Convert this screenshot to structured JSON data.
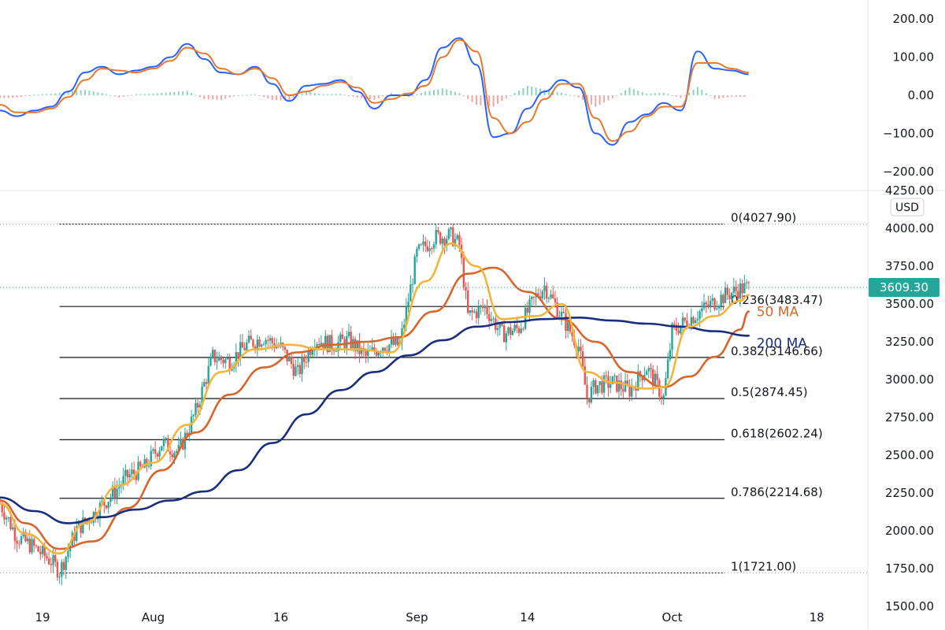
{
  "chart_data": [
    {
      "type": "line",
      "panel": "oscillator",
      "ylim": [
        -250,
        250
      ],
      "yticks": [
        "200.00",
        "100.00",
        "0.00",
        "−100.00",
        "−200.00"
      ],
      "ytick_values": [
        200,
        100,
        0,
        -100,
        -200
      ],
      "series": [
        {
          "color": "#2962ff",
          "x": [
            "2021-07-14",
            "2021-07-16",
            "2021-07-18",
            "2021-07-20",
            "2021-07-22",
            "2021-07-24",
            "2021-07-26",
            "2021-07-28",
            "2021-07-30",
            "2021-08-01",
            "2021-08-03",
            "2021-08-05",
            "2021-08-07",
            "2021-08-09",
            "2021-08-11",
            "2021-08-13",
            "2021-08-15",
            "2021-08-17",
            "2021-08-19",
            "2021-08-21",
            "2021-08-23",
            "2021-08-25",
            "2021-08-27",
            "2021-08-29",
            "2021-08-31",
            "2021-09-02",
            "2021-09-04",
            "2021-09-06",
            "2021-09-08",
            "2021-09-10",
            "2021-09-12",
            "2021-09-14",
            "2021-09-16",
            "2021-09-18",
            "2021-09-20",
            "2021-09-22",
            "2021-09-24",
            "2021-09-26",
            "2021-09-28",
            "2021-09-30",
            "2021-10-02",
            "2021-10-04",
            "2021-10-06",
            "2021-10-08",
            "2021-10-10"
          ],
          "y": [
            -40,
            -55,
            -40,
            -30,
            10,
            60,
            75,
            55,
            65,
            75,
            100,
            135,
            95,
            60,
            55,
            75,
            30,
            -15,
            25,
            30,
            40,
            10,
            -35,
            0,
            0,
            40,
            125,
            150,
            80,
            -110,
            -100,
            -35,
            10,
            40,
            20,
            -100,
            -130,
            -70,
            -50,
            -20,
            -40,
            115,
            70,
            65,
            55
          ]
        },
        {
          "color": "#e8782b",
          "x": [
            "2021-07-14",
            "2021-07-16",
            "2021-07-18",
            "2021-07-20",
            "2021-07-22",
            "2021-07-24",
            "2021-07-26",
            "2021-07-28",
            "2021-07-30",
            "2021-08-01",
            "2021-08-03",
            "2021-08-05",
            "2021-08-07",
            "2021-08-09",
            "2021-08-11",
            "2021-08-13",
            "2021-08-15",
            "2021-08-17",
            "2021-08-19",
            "2021-08-21",
            "2021-08-23",
            "2021-08-25",
            "2021-08-27",
            "2021-08-29",
            "2021-08-31",
            "2021-09-02",
            "2021-09-04",
            "2021-09-06",
            "2021-09-08",
            "2021-09-10",
            "2021-09-12",
            "2021-09-14",
            "2021-09-16",
            "2021-09-18",
            "2021-09-20",
            "2021-09-22",
            "2021-09-24",
            "2021-09-26",
            "2021-09-28",
            "2021-09-30",
            "2021-10-02",
            "2021-10-04",
            "2021-10-06",
            "2021-10-08",
            "2021-10-10"
          ],
          "y": [
            -25,
            -45,
            -45,
            -35,
            -5,
            40,
            70,
            65,
            60,
            70,
            90,
            125,
            110,
            70,
            55,
            70,
            45,
            0,
            10,
            25,
            35,
            20,
            -20,
            -10,
            5,
            25,
            100,
            145,
            115,
            -60,
            -100,
            -70,
            -10,
            30,
            30,
            -60,
            -120,
            -95,
            -55,
            -30,
            -30,
            85,
            85,
            70,
            60
          ]
        }
      ],
      "histogram": {
        "x": [
          "2021-07-14",
          "2021-07-16",
          "2021-07-18",
          "2021-07-20",
          "2021-07-22",
          "2021-07-24",
          "2021-07-26",
          "2021-07-28",
          "2021-07-30",
          "2021-08-01",
          "2021-08-03",
          "2021-08-05",
          "2021-08-07",
          "2021-08-09",
          "2021-08-11",
          "2021-08-13",
          "2021-08-15",
          "2021-08-17",
          "2021-08-19",
          "2021-08-21",
          "2021-08-23",
          "2021-08-25",
          "2021-08-27",
          "2021-08-29",
          "2021-08-31",
          "2021-09-02",
          "2021-09-04",
          "2021-09-06",
          "2021-09-08",
          "2021-09-10",
          "2021-09-12",
          "2021-09-14",
          "2021-09-16",
          "2021-09-18",
          "2021-09-20",
          "2021-09-22",
          "2021-09-24",
          "2021-09-26",
          "2021-09-28",
          "2021-09-30",
          "2021-10-02",
          "2021-10-04",
          "2021-10-06",
          "2021-10-08",
          "2021-10-10"
        ],
        "y": [
          -8,
          -6,
          2,
          4,
          10,
          14,
          6,
          -6,
          3,
          4,
          8,
          12,
          -10,
          -12,
          0,
          3,
          -12,
          -14,
          10,
          3,
          4,
          -6,
          -12,
          6,
          -4,
          10,
          18,
          6,
          -25,
          -30,
          0,
          25,
          15,
          7,
          -6,
          -30,
          -8,
          20,
          4,
          7,
          -7,
          22,
          -10,
          -4,
          -4
        ],
        "positive_color": "#8fd3c1",
        "negative_color": "#f2a5a5"
      }
    },
    {
      "type": "candlestick",
      "panel": "price",
      "currency": "USD",
      "ylim": [
        1500,
        4250
      ],
      "yticks": [
        "4250.00",
        "4000.00",
        "3750.00",
        "3500.00",
        "3250.00",
        "3000.00",
        "2750.00",
        "2500.00",
        "2250.00",
        "2000.00",
        "1750.00",
        "1500.00"
      ],
      "ytick_values": [
        4250,
        4000,
        3750,
        3500,
        3250,
        3000,
        2750,
        2500,
        2250,
        2000,
        1750,
        1500
      ],
      "xticks": [
        "19",
        "Aug",
        "16",
        "Sep",
        "14",
        "Oct",
        "18"
      ],
      "xtick_dates": [
        "2021-07-19",
        "2021-08-01",
        "2021-08-16",
        "2021-09-01",
        "2021-09-14",
        "2021-10-01",
        "2021-10-18"
      ],
      "xlim": [
        "2021-07-14",
        "2021-10-24"
      ],
      "last_price": "3609.30",
      "last_price_value": 3609.3,
      "up_color": "#26a69a",
      "down_color": "#ef5350",
      "price_path": [
        [
          "2021-07-14",
          2180
        ],
        [
          "2021-07-16",
          1960
        ],
        [
          "2021-07-18",
          1890
        ],
        [
          "2021-07-20",
          1800
        ],
        [
          "2021-07-21",
          1730
        ],
        [
          "2021-07-23",
          2010
        ],
        [
          "2021-07-25",
          2110
        ],
        [
          "2021-07-27",
          2230
        ],
        [
          "2021-07-29",
          2360
        ],
        [
          "2021-07-31",
          2420
        ],
        [
          "2021-08-02",
          2580
        ],
        [
          "2021-08-04",
          2520
        ],
        [
          "2021-08-06",
          2790
        ],
        [
          "2021-08-08",
          3150
        ],
        [
          "2021-08-10",
          3120
        ],
        [
          "2021-08-12",
          3230
        ],
        [
          "2021-08-14",
          3280
        ],
        [
          "2021-08-16",
          3210
        ],
        [
          "2021-08-18",
          3040
        ],
        [
          "2021-08-20",
          3270
        ],
        [
          "2021-08-22",
          3230
        ],
        [
          "2021-08-24",
          3260
        ],
        [
          "2021-08-26",
          3150
        ],
        [
          "2021-08-28",
          3230
        ],
        [
          "2021-08-30",
          3230
        ],
        [
          "2021-09-01",
          3830
        ],
        [
          "2021-09-03",
          3940
        ],
        [
          "2021-09-05",
          3950
        ],
        [
          "2021-09-06",
          3890
        ],
        [
          "2021-09-07",
          3420
        ],
        [
          "2021-09-09",
          3480
        ],
        [
          "2021-09-11",
          3300
        ],
        [
          "2021-09-13",
          3340
        ],
        [
          "2021-09-15",
          3550
        ],
        [
          "2021-09-16",
          3620
        ],
        [
          "2021-09-18",
          3420
        ],
        [
          "2021-09-20",
          3220
        ],
        [
          "2021-09-21",
          2880
        ],
        [
          "2021-09-22",
          2960
        ],
        [
          "2021-09-24",
          2980
        ],
        [
          "2021-09-26",
          2930
        ],
        [
          "2021-09-28",
          3080
        ],
        [
          "2021-09-30",
          2880
        ],
        [
          "2021-10-01",
          3320
        ],
        [
          "2021-10-03",
          3400
        ],
        [
          "2021-10-05",
          3480
        ],
        [
          "2021-10-07",
          3550
        ],
        [
          "2021-10-09",
          3600
        ],
        [
          "2021-10-10",
          3609
        ]
      ],
      "overlays": [
        {
          "name": "50 MA",
          "color": "#d8652b",
          "x": [
            "2021-07-14",
            "2021-07-17",
            "2021-07-21",
            "2021-07-25",
            "2021-07-29",
            "2021-08-02",
            "2021-08-06",
            "2021-08-10",
            "2021-08-14",
            "2021-08-18",
            "2021-08-22",
            "2021-08-26",
            "2021-08-30",
            "2021-09-03",
            "2021-09-07",
            "2021-09-10",
            "2021-09-14",
            "2021-09-18",
            "2021-09-22",
            "2021-09-26",
            "2021-09-30",
            "2021-10-03",
            "2021-10-06",
            "2021-10-09",
            "2021-10-10"
          ],
          "y": [
            2200,
            2050,
            1880,
            1930,
            2150,
            2400,
            2650,
            2900,
            3080,
            3180,
            3230,
            3250,
            3280,
            3450,
            3700,
            3740,
            3580,
            3400,
            3250,
            3050,
            2950,
            3020,
            3150,
            3330,
            3450
          ]
        },
        {
          "name": "200 MA",
          "color": "#1a2e7e",
          "x": [
            "2021-07-14",
            "2021-07-18",
            "2021-07-22",
            "2021-07-26",
            "2021-07-30",
            "2021-08-03",
            "2021-08-07",
            "2021-08-11",
            "2021-08-15",
            "2021-08-19",
            "2021-08-23",
            "2021-08-27",
            "2021-08-31",
            "2021-09-04",
            "2021-09-08",
            "2021-09-12",
            "2021-09-16",
            "2021-09-20",
            "2021-09-24",
            "2021-09-28",
            "2021-10-02",
            "2021-10-06",
            "2021-10-10"
          ],
          "y": [
            2220,
            2130,
            2050,
            2090,
            2140,
            2200,
            2260,
            2400,
            2580,
            2770,
            2930,
            3050,
            3160,
            3260,
            3350,
            3380,
            3400,
            3410,
            3390,
            3370,
            3350,
            3320,
            3290
          ]
        },
        {
          "color": "#f2b53a",
          "x": [
            "2021-07-14",
            "2021-07-17",
            "2021-07-21",
            "2021-07-24",
            "2021-07-28",
            "2021-08-01",
            "2021-08-05",
            "2021-08-09",
            "2021-08-13",
            "2021-08-17",
            "2021-08-21",
            "2021-08-25",
            "2021-08-29",
            "2021-09-02",
            "2021-09-05",
            "2021-09-08",
            "2021-09-11",
            "2021-09-15",
            "2021-09-18",
            "2021-09-21",
            "2021-09-24",
            "2021-09-28",
            "2021-09-30",
            "2021-10-03",
            "2021-10-06",
            "2021-10-09",
            "2021-10-10"
          ],
          "y": [
            2180,
            1980,
            1850,
            2050,
            2300,
            2450,
            2700,
            3050,
            3200,
            3230,
            3200,
            3200,
            3180,
            3650,
            3900,
            3750,
            3400,
            3420,
            3500,
            3050,
            2980,
            2940,
            2950,
            3350,
            3420,
            3520,
            3560
          ]
        }
      ],
      "fib_levels": [
        {
          "label": "0(4027.90)",
          "value": 4027.9,
          "style": "dashed"
        },
        {
          "label": "0.236(3483.47)",
          "value": 3483.47,
          "style": "solid"
        },
        {
          "label": "0.382(3146.66)",
          "value": 3146.66,
          "style": "solid"
        },
        {
          "label": "0.5(2874.45)",
          "value": 2874.45,
          "style": "solid"
        },
        {
          "label": "0.618(2602.24)",
          "value": 2602.24,
          "style": "solid"
        },
        {
          "label": "0.786(2214.68)",
          "value": 2214.68,
          "style": "solid"
        },
        {
          "label": "1(1721.00)",
          "value": 1721.0,
          "style": "dashed"
        }
      ],
      "fib_start": "2021-07-21"
    }
  ]
}
